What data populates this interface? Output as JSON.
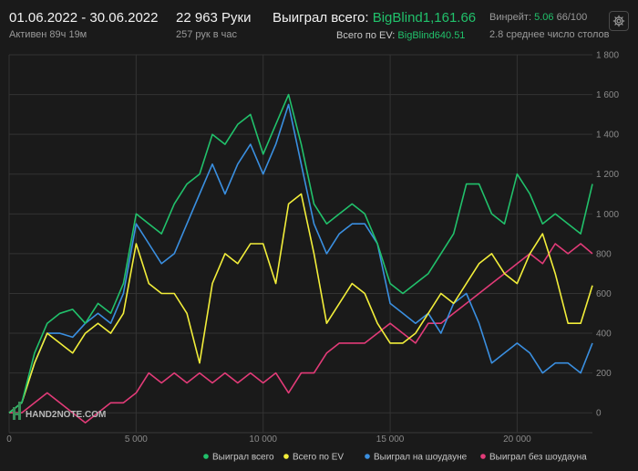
{
  "header": {
    "date_range": "01.06.2022 - 30.06.2022",
    "active_time": "Активен 89ч 19м",
    "hands": "22 963 Руки",
    "hands_per_hour": "257 рук в час",
    "won_total_label": "Выиграл всего:",
    "won_total_value": "BigBlind1,161.66",
    "ev_total_label": "Всего по EV:",
    "ev_total_value": "BigBlind640.51",
    "winrate_label": "Винрейт:",
    "winrate_value": "5.06",
    "winrate_hands": "66/100",
    "avg_tables": "2.8 среднее число столов"
  },
  "watermark": "HAND2NOTE.COM",
  "colors": {
    "green": "#21c16b",
    "yellow": "#f2ee3a",
    "blue": "#3a8fe0",
    "pink": "#e23b78"
  },
  "chart_data": {
    "type": "line",
    "title": "",
    "xlabel": "",
    "ylabel": "",
    "x_ticks": [
      "0",
      "5 000",
      "10 000",
      "15 000",
      "20 000"
    ],
    "x_tick_values": [
      0,
      5000,
      10000,
      15000,
      20000
    ],
    "y_ticks": [
      "0",
      "200",
      "400",
      "600",
      "800",
      "1 000",
      "1 200",
      "1 400",
      "1 600",
      "1 800"
    ],
    "y_tick_values": [
      0,
      200,
      400,
      600,
      800,
      1000,
      1200,
      1400,
      1600,
      1800
    ],
    "xlim": [
      0,
      22963
    ],
    "ylim": [
      -100,
      1800
    ],
    "legend_position": "bottom-right",
    "series": [
      {
        "name": "Выиграл всего",
        "color": "#21c16b",
        "x": [
          0,
          500,
          1000,
          1500,
          2000,
          2500,
          3000,
          3500,
          4000,
          4500,
          5000,
          5500,
          6000,
          6500,
          7000,
          7500,
          8000,
          8500,
          9000,
          9500,
          10000,
          10500,
          11000,
          11500,
          12000,
          12500,
          13000,
          13500,
          14000,
          14500,
          15000,
          15500,
          16000,
          16500,
          17000,
          17500,
          18000,
          18500,
          19000,
          19500,
          20000,
          20500,
          21000,
          21500,
          22000,
          22500,
          22963
        ],
        "values": [
          0,
          50,
          300,
          450,
          500,
          520,
          450,
          550,
          500,
          650,
          1000,
          950,
          900,
          1050,
          1150,
          1200,
          1400,
          1350,
          1450,
          1500,
          1300,
          1450,
          1600,
          1350,
          1050,
          950,
          1000,
          1050,
          1000,
          850,
          650,
          600,
          650,
          700,
          800,
          900,
          1150,
          1150,
          1000,
          950,
          1200,
          1100,
          950,
          1000,
          950,
          900,
          1150
        ]
      },
      {
        "name": "Всего по EV",
        "color": "#f2ee3a",
        "x": [
          0,
          500,
          1000,
          1500,
          2000,
          2500,
          3000,
          3500,
          4000,
          4500,
          5000,
          5500,
          6000,
          6500,
          7000,
          7500,
          8000,
          8500,
          9000,
          9500,
          10000,
          10500,
          11000,
          11500,
          12000,
          12500,
          13000,
          13500,
          14000,
          14500,
          15000,
          15500,
          16000,
          16500,
          17000,
          17500,
          18000,
          18500,
          19000,
          19500,
          20000,
          20500,
          21000,
          21500,
          22000,
          22500,
          22963
        ],
        "values": [
          0,
          50,
          250,
          400,
          350,
          300,
          400,
          450,
          400,
          500,
          850,
          650,
          600,
          600,
          500,
          250,
          650,
          800,
          750,
          850,
          850,
          650,
          1050,
          1100,
          800,
          450,
          550,
          650,
          600,
          450,
          350,
          350,
          400,
          500,
          600,
          550,
          650,
          750,
          800,
          700,
          650,
          800,
          900,
          700,
          450,
          450,
          640
        ]
      },
      {
        "name": "Выиграл на шоудауне",
        "color": "#3a8fe0",
        "x": [
          0,
          500,
          1000,
          1500,
          2000,
          2500,
          3000,
          3500,
          4000,
          4500,
          5000,
          5500,
          6000,
          6500,
          7000,
          7500,
          8000,
          8500,
          9000,
          9500,
          10000,
          10500,
          11000,
          11500,
          12000,
          12500,
          13000,
          13500,
          14000,
          14500,
          15000,
          15500,
          16000,
          16500,
          17000,
          17500,
          18000,
          18500,
          19000,
          19500,
          20000,
          20500,
          21000,
          21500,
          22000,
          22500,
          22963
        ],
        "values": [
          0,
          50,
          250,
          400,
          400,
          380,
          450,
          500,
          450,
          600,
          950,
          850,
          750,
          800,
          950,
          1100,
          1250,
          1100,
          1250,
          1350,
          1200,
          1350,
          1550,
          1250,
          950,
          800,
          900,
          950,
          950,
          850,
          550,
          500,
          450,
          500,
          400,
          550,
          600,
          450,
          250,
          300,
          350,
          300,
          200,
          250,
          250,
          200,
          350
        ]
      },
      {
        "name": "Выиграл без шоудауна",
        "color": "#e23b78",
        "x": [
          0,
          500,
          1000,
          1500,
          2000,
          2500,
          3000,
          3500,
          4000,
          4500,
          5000,
          5500,
          6000,
          6500,
          7000,
          7500,
          8000,
          8500,
          9000,
          9500,
          10000,
          10500,
          11000,
          11500,
          12000,
          12500,
          13000,
          13500,
          14000,
          14500,
          15000,
          15500,
          16000,
          16500,
          17000,
          17500,
          18000,
          18500,
          19000,
          19500,
          20000,
          20500,
          21000,
          21500,
          22000,
          22500,
          22963
        ],
        "values": [
          0,
          0,
          50,
          100,
          50,
          0,
          -50,
          0,
          50,
          50,
          100,
          200,
          150,
          200,
          150,
          200,
          150,
          200,
          150,
          200,
          150,
          200,
          100,
          200,
          200,
          300,
          350,
          350,
          350,
          400,
          450,
          400,
          350,
          450,
          450,
          500,
          550,
          600,
          650,
          700,
          750,
          800,
          750,
          850,
          800,
          850,
          800
        ]
      }
    ]
  }
}
